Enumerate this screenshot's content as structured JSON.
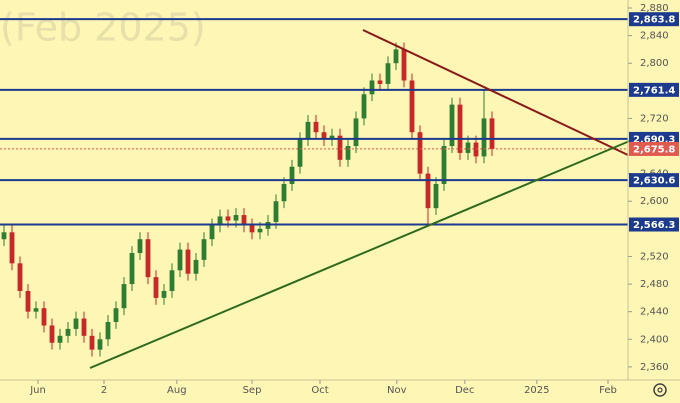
{
  "chart_data": {
    "type": "candlestick",
    "watermark": "(Feb 2025)",
    "x": [
      0,
      1,
      2,
      3,
      4,
      5,
      6,
      7,
      8,
      9,
      10,
      11,
      12,
      13,
      14,
      15,
      16,
      17,
      18,
      19,
      20,
      21,
      22,
      23,
      24,
      25,
      26,
      27,
      28,
      29,
      30,
      31,
      32,
      33,
      34,
      35,
      36,
      37,
      38,
      39,
      40,
      41,
      42,
      43,
      44,
      45,
      46,
      47,
      48,
      49,
      50,
      51,
      52,
      53,
      54,
      55,
      56,
      57,
      58,
      59,
      60,
      61
    ],
    "open": [
      2545,
      2555,
      2510,
      2470,
      2440,
      2445,
      2420,
      2395,
      2405,
      2415,
      2430,
      2405,
      2385,
      2400,
      2425,
      2445,
      2480,
      2525,
      2545,
      2490,
      2460,
      2470,
      2500,
      2530,
      2495,
      2515,
      2545,
      2565,
      2578,
      2572,
      2580,
      2565,
      2555,
      2560,
      2570,
      2600,
      2625,
      2650,
      2690,
      2715,
      2700,
      2690,
      2695,
      2660,
      2680,
      2720,
      2755,
      2775,
      2770,
      2800,
      2820,
      2775,
      2700,
      2640,
      2590,
      2625,
      2680,
      2740,
      2670,
      2685,
      2665,
      2720
    ],
    "high": [
      2565,
      2565,
      2520,
      2480,
      2455,
      2455,
      2430,
      2415,
      2425,
      2440,
      2440,
      2415,
      2410,
      2435,
      2455,
      2490,
      2535,
      2555,
      2555,
      2500,
      2480,
      2510,
      2540,
      2540,
      2525,
      2555,
      2575,
      2588,
      2588,
      2590,
      2590,
      2575,
      2570,
      2580,
      2610,
      2635,
      2660,
      2700,
      2725,
      2725,
      2710,
      2705,
      2705,
      2690,
      2730,
      2765,
      2785,
      2785,
      2810,
      2830,
      2830,
      2785,
      2710,
      2650,
      2635,
      2690,
      2750,
      2750,
      2695,
      2695,
      2761.4,
      2730
    ],
    "low": [
      2535,
      2500,
      2460,
      2430,
      2430,
      2410,
      2385,
      2385,
      2395,
      2405,
      2395,
      2375,
      2375,
      2390,
      2415,
      2435,
      2470,
      2515,
      2480,
      2450,
      2450,
      2460,
      2490,
      2485,
      2485,
      2505,
      2535,
      2555,
      2562,
      2562,
      2555,
      2545,
      2545,
      2550,
      2560,
      2590,
      2615,
      2640,
      2680,
      2690,
      2680,
      2680,
      2650,
      2650,
      2670,
      2710,
      2745,
      2760,
      2760,
      2790,
      2765,
      2690,
      2630,
      2566.3,
      2580,
      2615,
      2670,
      2660,
      2660,
      2655,
      2655,
      2665.8
    ],
    "close": [
      2555,
      2510,
      2470,
      2440,
      2445,
      2420,
      2395,
      2405,
      2415,
      2430,
      2405,
      2385,
      2400,
      2425,
      2445,
      2480,
      2525,
      2545,
      2490,
      2460,
      2470,
      2500,
      2530,
      2495,
      2515,
      2545,
      2565,
      2578,
      2572,
      2580,
      2565,
      2555,
      2560,
      2570,
      2600,
      2625,
      2650,
      2690,
      2715,
      2700,
      2690,
      2695,
      2660,
      2680,
      2720,
      2755,
      2775,
      2770,
      2800,
      2820,
      2775,
      2700,
      2640,
      2590,
      2625,
      2680,
      2740,
      2670,
      2685,
      2665,
      2720,
      2675.8
    ],
    "up_color": "#2f7d32",
    "down_color": "#c62828",
    "xlim": [
      -0.5,
      78
    ],
    "xticks": [
      {
        "value": 4.25,
        "label": "Jun"
      },
      {
        "value": 12.5,
        "label": "2"
      },
      {
        "value": 21.6,
        "label": "Aug"
      },
      {
        "value": 31,
        "label": "Sep"
      },
      {
        "value": 39.5,
        "label": "Oct"
      },
      {
        "value": 49.1,
        "label": "Nov"
      },
      {
        "value": 57.6,
        "label": "Dec"
      },
      {
        "value": 66.6,
        "label": "2025"
      },
      {
        "value": 75.5,
        "label": "Feb"
      }
    ],
    "ylim": [
      2341,
      2891.6
    ],
    "yticks": [
      {
        "value": 2880,
        "label": "2,880"
      },
      {
        "value": 2840,
        "label": "2,840"
      },
      {
        "value": 2800,
        "label": "2,800"
      },
      {
        "value": 2720,
        "label": "2,720"
      },
      {
        "value": 2640,
        "label": "2,640"
      },
      {
        "value": 2600,
        "label": "2,600"
      },
      {
        "value": 2520,
        "label": "2,520"
      },
      {
        "value": 2480,
        "label": "2,480"
      },
      {
        "value": 2440,
        "label": "2,440"
      },
      {
        "value": 2400,
        "label": "2,400"
      },
      {
        "value": 2360,
        "label": "2,360"
      }
    ],
    "levels": [
      {
        "value": 2863.8,
        "label": "2,863.8",
        "color": "#1c3b8f"
      },
      {
        "value": 2761.4,
        "label": "2,761.4",
        "color": "#1c3b8f"
      },
      {
        "value": 2690.3,
        "label": "2,690.3",
        "color": "#1c3b8f"
      },
      {
        "value": 2675.8,
        "label": "2,675.8",
        "color": "#e05a50"
      },
      {
        "value": 2630.6,
        "label": "2,630.6",
        "color": "#1c3b8f"
      },
      {
        "value": 2566.3,
        "label": "2,566.3",
        "color": "#1c3b8f"
      }
    ]
  }
}
